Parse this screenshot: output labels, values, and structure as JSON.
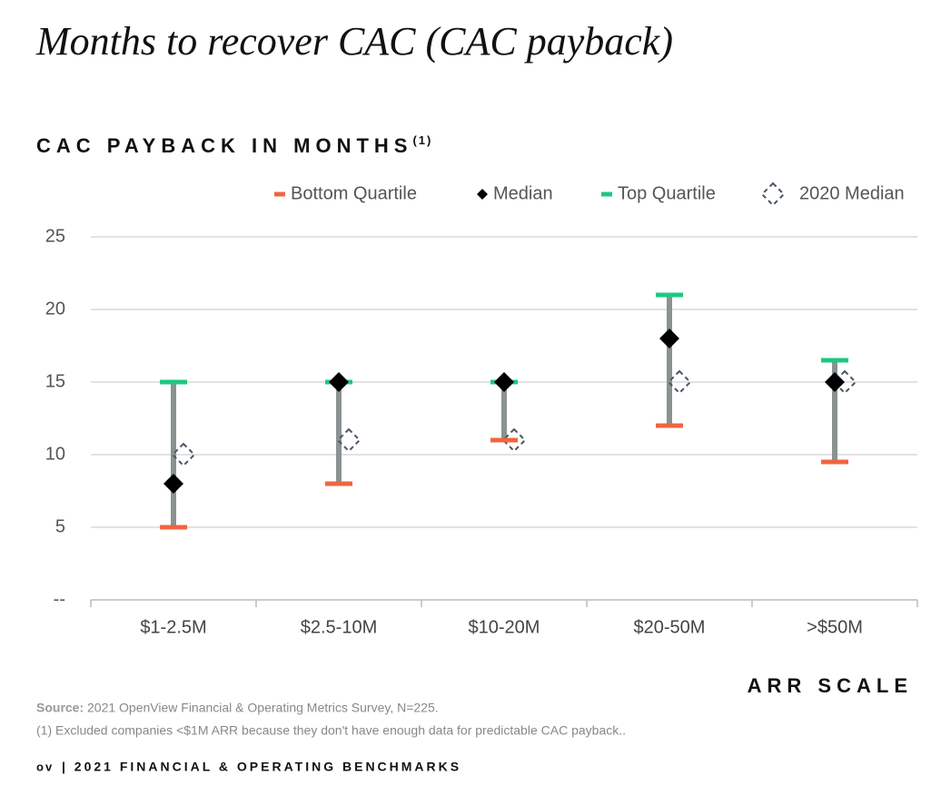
{
  "chart_data": {
    "type": "range",
    "title": "Months to recover CAC (CAC payback)",
    "subtitle": "CAC PAYBACK IN MONTHS",
    "subtitle_note": "(1)",
    "x_label": "ARR SCALE",
    "categories": [
      "$1-2.5M",
      "$2.5-10M",
      "$10-20M",
      "$20-50M",
      ">$50M"
    ],
    "series": [
      {
        "name": "Bottom Quartile",
        "color": "#f06440",
        "marker": "bar",
        "values": [
          5,
          8,
          11,
          12,
          9.5
        ]
      },
      {
        "name": "Median",
        "color": "#000000",
        "marker": "diamond",
        "values": [
          8,
          15,
          15,
          18,
          15
        ]
      },
      {
        "name": "Top Quartile",
        "color": "#1ec882",
        "marker": "bar",
        "values": [
          15,
          15,
          15,
          21,
          16.5
        ]
      },
      {
        "name": "2020 Median",
        "color": "#4a5565",
        "marker": "dashed-diamond",
        "values": [
          10,
          11,
          11,
          15,
          15
        ]
      }
    ],
    "range_color": "#8a9292",
    "ylim": [
      0,
      25
    ],
    "yticks": [
      {
        "value": 0,
        "label": "--"
      },
      5,
      10,
      15,
      20,
      25
    ],
    "grid": true,
    "source_label": "Source:",
    "source": "2021 OpenView Financial & Operating Metrics Survey, N=225.",
    "footnote": "(1) Excluded companies <$1M ARR because they don't have enough data for predictable CAC payback..",
    "footer_logo": "ov",
    "footer": "| 2021 FINANCIAL & OPERATING BENCHMARKS"
  }
}
